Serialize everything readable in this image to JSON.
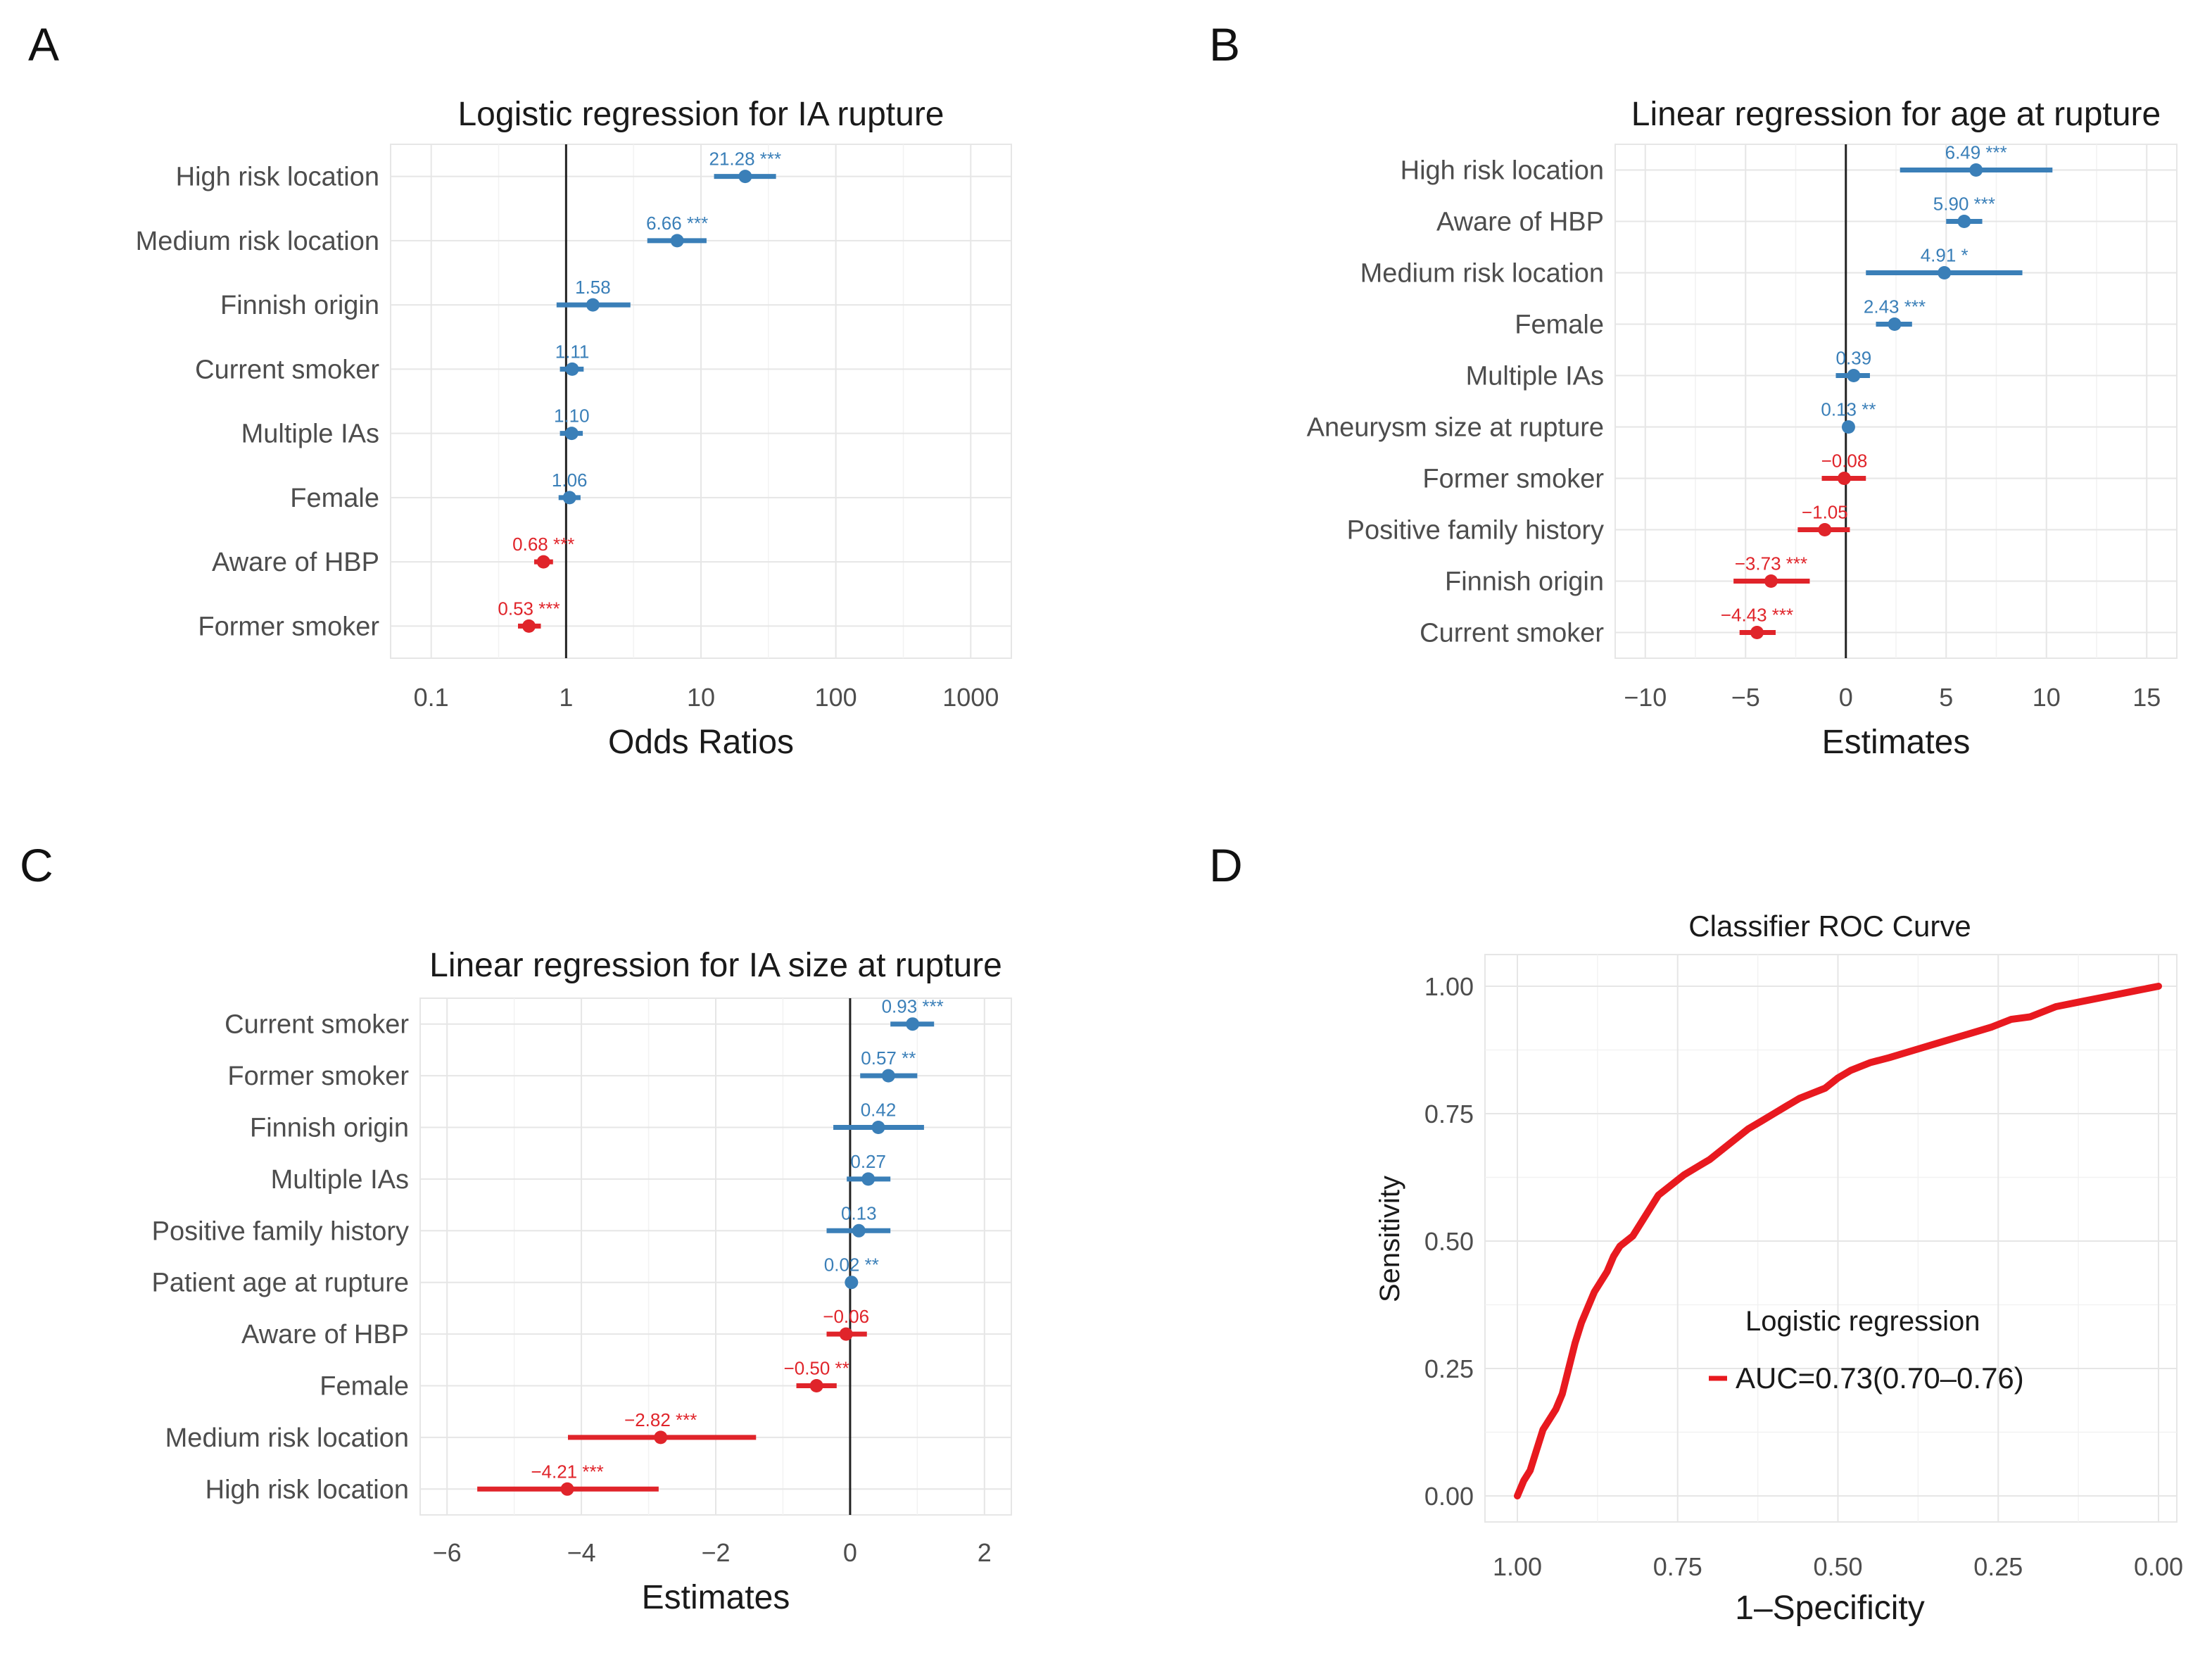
{
  "colors": {
    "positive": "#3A7FB8",
    "negative": "#E0242A",
    "roc": "#E8191F"
  },
  "chart_data": [
    {
      "panel": "A",
      "type": "forest",
      "title": "Logistic regression for IA rupture",
      "xlabel": "Odds Ratios",
      "xscale": "log10",
      "xlim": [
        0.05,
        2000
      ],
      "ref": 1,
      "ticks": [
        0.1,
        1,
        10,
        100,
        1000
      ],
      "tick_labels": [
        "0.1",
        "1",
        "10",
        "100",
        "1000"
      ],
      "rows": [
        {
          "label": "High risk location",
          "est": 21.28,
          "lo": 12.5,
          "hi": 36.0,
          "text": "21.28 ***"
        },
        {
          "label": "Medium risk location",
          "est": 6.66,
          "lo": 4.0,
          "hi": 11.0,
          "text": "6.66 ***"
        },
        {
          "label": "Finnish origin",
          "est": 1.58,
          "lo": 0.85,
          "hi": 3.0,
          "text": "1.58"
        },
        {
          "label": "Current smoker",
          "est": 1.11,
          "lo": 0.9,
          "hi": 1.35,
          "text": "1.11"
        },
        {
          "label": "Multiple IAs",
          "est": 1.1,
          "lo": 0.9,
          "hi": 1.33,
          "text": "1.10"
        },
        {
          "label": "Female",
          "est": 1.06,
          "lo": 0.88,
          "hi": 1.28,
          "text": "1.06"
        },
        {
          "label": "Aware of HBP",
          "est": 0.68,
          "lo": 0.58,
          "hi": 0.8,
          "text": "0.68 ***"
        },
        {
          "label": "Former smoker",
          "est": 0.53,
          "lo": 0.44,
          "hi": 0.65,
          "text": "0.53 ***"
        }
      ]
    },
    {
      "panel": "B",
      "type": "forest",
      "title": "Linear regression for age at rupture",
      "xlabel": "Estimates",
      "xscale": "linear",
      "xlim": [
        -11.5,
        16.5
      ],
      "ref": 0,
      "ticks": [
        -10,
        -5,
        0,
        5,
        10,
        15
      ],
      "tick_labels": [
        "−10",
        "−5",
        "0",
        "5",
        "10",
        "15"
      ],
      "rows": [
        {
          "label": "High risk location",
          "est": 6.49,
          "lo": 2.7,
          "hi": 10.3,
          "text": "6.49 ***"
        },
        {
          "label": "Aware of HBP",
          "est": 5.9,
          "lo": 5.0,
          "hi": 6.8,
          "text": "5.90 ***"
        },
        {
          "label": "Medium risk location",
          "est": 4.91,
          "lo": 1.0,
          "hi": 8.8,
          "text": "4.91 *"
        },
        {
          "label": "Female",
          "est": 2.43,
          "lo": 1.5,
          "hi": 3.3,
          "text": "2.43 ***"
        },
        {
          "label": "Multiple IAs",
          "est": 0.39,
          "lo": -0.5,
          "hi": 1.2,
          "text": "0.39"
        },
        {
          "label": "Aneurysm size at rupture",
          "est": 0.13,
          "lo": 0.05,
          "hi": 0.2,
          "text": "0.13 **"
        },
        {
          "label": "Former smoker",
          "est": -0.08,
          "lo": -1.2,
          "hi": 1.0,
          "text": "−0.08"
        },
        {
          "label": "Positive family history",
          "est": -1.05,
          "lo": -2.4,
          "hi": 0.2,
          "text": "−1.05"
        },
        {
          "label": "Finnish origin",
          "est": -3.73,
          "lo": -5.6,
          "hi": -1.8,
          "text": "−3.73 ***"
        },
        {
          "label": "Current smoker",
          "est": -4.43,
          "lo": -5.3,
          "hi": -3.5,
          "text": "−4.43 ***"
        }
      ]
    },
    {
      "panel": "C",
      "type": "forest",
      "title": "Linear regression for IA size at rupture",
      "xlabel": "Estimates",
      "xscale": "linear",
      "xlim": [
        -6.4,
        2.4
      ],
      "ref": 0,
      "ticks": [
        -6,
        -4,
        -2,
        0,
        2
      ],
      "tick_labels": [
        "−6",
        "−4",
        "−2",
        "0",
        "2"
      ],
      "rows": [
        {
          "label": "Current smoker",
          "est": 0.93,
          "lo": 0.6,
          "hi": 1.25,
          "text": "0.93 ***"
        },
        {
          "label": "Former smoker",
          "est": 0.57,
          "lo": 0.15,
          "hi": 1.0,
          "text": "0.57 **"
        },
        {
          "label": "Finnish origin",
          "est": 0.42,
          "lo": -0.25,
          "hi": 1.1,
          "text": "0.42"
        },
        {
          "label": "Multiple IAs",
          "est": 0.27,
          "lo": -0.05,
          "hi": 0.6,
          "text": "0.27"
        },
        {
          "label": "Positive family history",
          "est": 0.13,
          "lo": -0.35,
          "hi": 0.6,
          "text": "0.13"
        },
        {
          "label": "Patient age at rupture",
          "est": 0.02,
          "lo": 0.0,
          "hi": 0.04,
          "text": "0.02 **"
        },
        {
          "label": "Aware of HBP",
          "est": -0.06,
          "lo": -0.35,
          "hi": 0.25,
          "text": "−0.06"
        },
        {
          "label": "Female",
          "est": -0.5,
          "lo": -0.8,
          "hi": -0.2,
          "text": "−0.50 **"
        },
        {
          "label": "Medium risk location",
          "est": -2.82,
          "lo": -4.2,
          "hi": -1.4,
          "text": "−2.82 ***"
        },
        {
          "label": "High risk location",
          "est": -4.21,
          "lo": -5.55,
          "hi": -2.85,
          "text": "−4.21 ***"
        }
      ]
    },
    {
      "panel": "D",
      "type": "line",
      "title": "Classifier ROC Curve",
      "xlabel": "1–Specificity",
      "ylabel": "Sensitivity",
      "xlim": [
        1.0,
        0.0
      ],
      "ylim": [
        0.0,
        1.0
      ],
      "x_ticks": [
        "1.00",
        "0.75",
        "0.50",
        "0.25",
        "0.00"
      ],
      "y_ticks": [
        "0.00",
        "0.25",
        "0.50",
        "0.75",
        "1.00"
      ],
      "legend_title": "Logistic regression",
      "legend_label": "AUC=0.73(0.70–0.76)",
      "series": [
        {
          "name": "Logistic regression",
          "x": [
            1.0,
            0.99,
            0.98,
            0.97,
            0.96,
            0.94,
            0.93,
            0.92,
            0.91,
            0.9,
            0.89,
            0.88,
            0.86,
            0.85,
            0.84,
            0.82,
            0.81,
            0.8,
            0.79,
            0.78,
            0.76,
            0.74,
            0.72,
            0.7,
            0.68,
            0.66,
            0.64,
            0.62,
            0.6,
            0.58,
            0.56,
            0.54,
            0.52,
            0.5,
            0.48,
            0.45,
            0.42,
            0.38,
            0.34,
            0.3,
            0.26,
            0.23,
            0.2,
            0.16,
            0.12,
            0.08,
            0.04,
            0.02,
            0.0
          ],
          "y": [
            0.0,
            0.03,
            0.05,
            0.09,
            0.13,
            0.17,
            0.2,
            0.25,
            0.3,
            0.34,
            0.37,
            0.4,
            0.44,
            0.47,
            0.49,
            0.51,
            0.53,
            0.55,
            0.57,
            0.59,
            0.61,
            0.63,
            0.645,
            0.66,
            0.68,
            0.7,
            0.72,
            0.735,
            0.75,
            0.765,
            0.78,
            0.79,
            0.8,
            0.82,
            0.835,
            0.85,
            0.86,
            0.875,
            0.89,
            0.905,
            0.92,
            0.935,
            0.94,
            0.96,
            0.97,
            0.98,
            0.99,
            0.995,
            1.0
          ]
        }
      ]
    }
  ]
}
